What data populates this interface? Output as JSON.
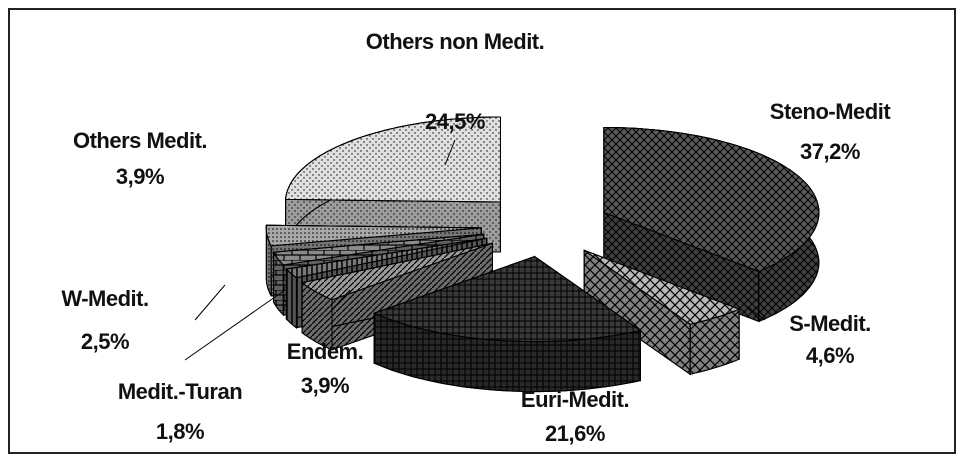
{
  "chart_data": {
    "type": "pie",
    "categories": [
      "Steno-Medit",
      "S-Medit.",
      "Euri-Medit.",
      "Endem.",
      "Medit.-Turan",
      "W-Medit.",
      "Others Medit.",
      "Others non Medit."
    ],
    "values": [
      37.2,
      4.6,
      21.6,
      3.9,
      1.8,
      2.5,
      3.9,
      24.5
    ],
    "value_labels": [
      "37,2%",
      "4,6%",
      "21,6%",
      "3,9%",
      "1,8%",
      "2,5%",
      "3,9%",
      "24,5%"
    ],
    "colors": [
      "#5a5a5a",
      "#b8b8b8",
      "#3a3a3a",
      "#9a9a9a",
      "#7a7a7a",
      "#8a8a8a",
      "#a8a8a8",
      "#e0e0e0"
    ]
  }
}
